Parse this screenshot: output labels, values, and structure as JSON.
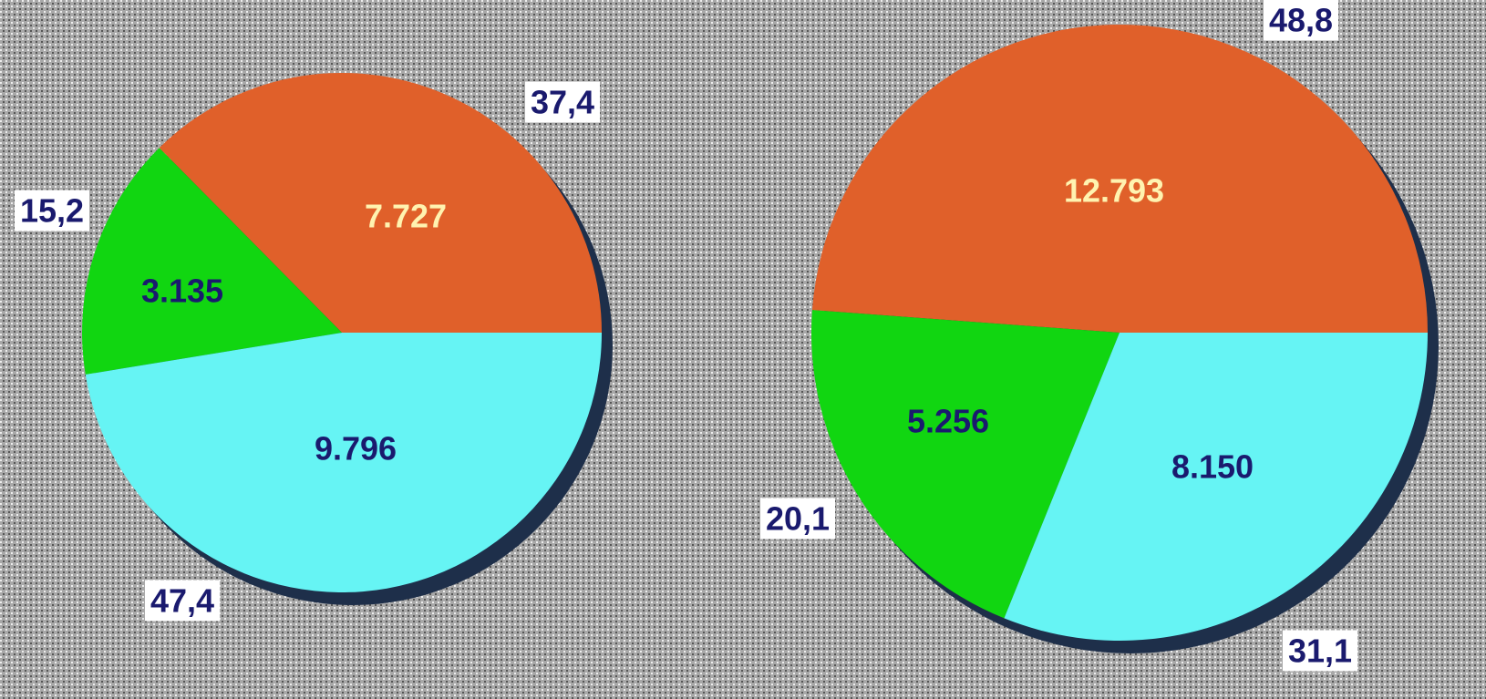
{
  "chart_data": [
    {
      "type": "pie",
      "values": [
        7727,
        3135,
        9796
      ],
      "value_labels": [
        "7.727",
        "3.135",
        "9.796"
      ],
      "percent_values": [
        37.4,
        15.2,
        47.4
      ],
      "percent_labels": [
        "37,4",
        "15,2",
        "47,4"
      ],
      "colors": [
        "#e0602a",
        "#11d611",
        "#66f4f4"
      ]
    },
    {
      "type": "pie",
      "values": [
        12793,
        5256,
        8150
      ],
      "value_labels": [
        "12.793",
        "5.256",
        "8.150"
      ],
      "percent_values": [
        48.8,
        20.1,
        31.1
      ],
      "percent_labels": [
        "48,8",
        "20,1",
        "31,1"
      ],
      "colors": [
        "#e0602a",
        "#11d611",
        "#66f4f4"
      ]
    }
  ]
}
